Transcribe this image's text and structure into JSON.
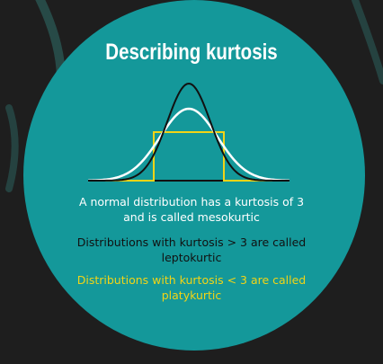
{
  "title": "Describing kurtosis",
  "colors": {
    "background": "#1e1e1e",
    "disc": "#14989a",
    "mesokurtic": "#ffffff",
    "leptokurtic": "#111111",
    "platykurtic": "#f2d416"
  },
  "diagram": {
    "curves": [
      {
        "kind": "leptokurtic-curve",
        "color": "#111111"
      },
      {
        "kind": "mesokurtic-curve",
        "color": "#ffffff"
      },
      {
        "kind": "platykurtic-curve",
        "color": "#f2d416"
      }
    ]
  },
  "statements": {
    "mesokurtic": {
      "line1": "A normal distribution has a kurtosis of 3",
      "line2": "and is called mesokurtic"
    },
    "leptokurtic": {
      "line1": "Distributions with kurtosis > 3 are called",
      "line2": "leptokurtic"
    },
    "platykurtic": {
      "line1": "Distributions with kurtosis < 3 are called",
      "line2": "platykurtic"
    }
  }
}
